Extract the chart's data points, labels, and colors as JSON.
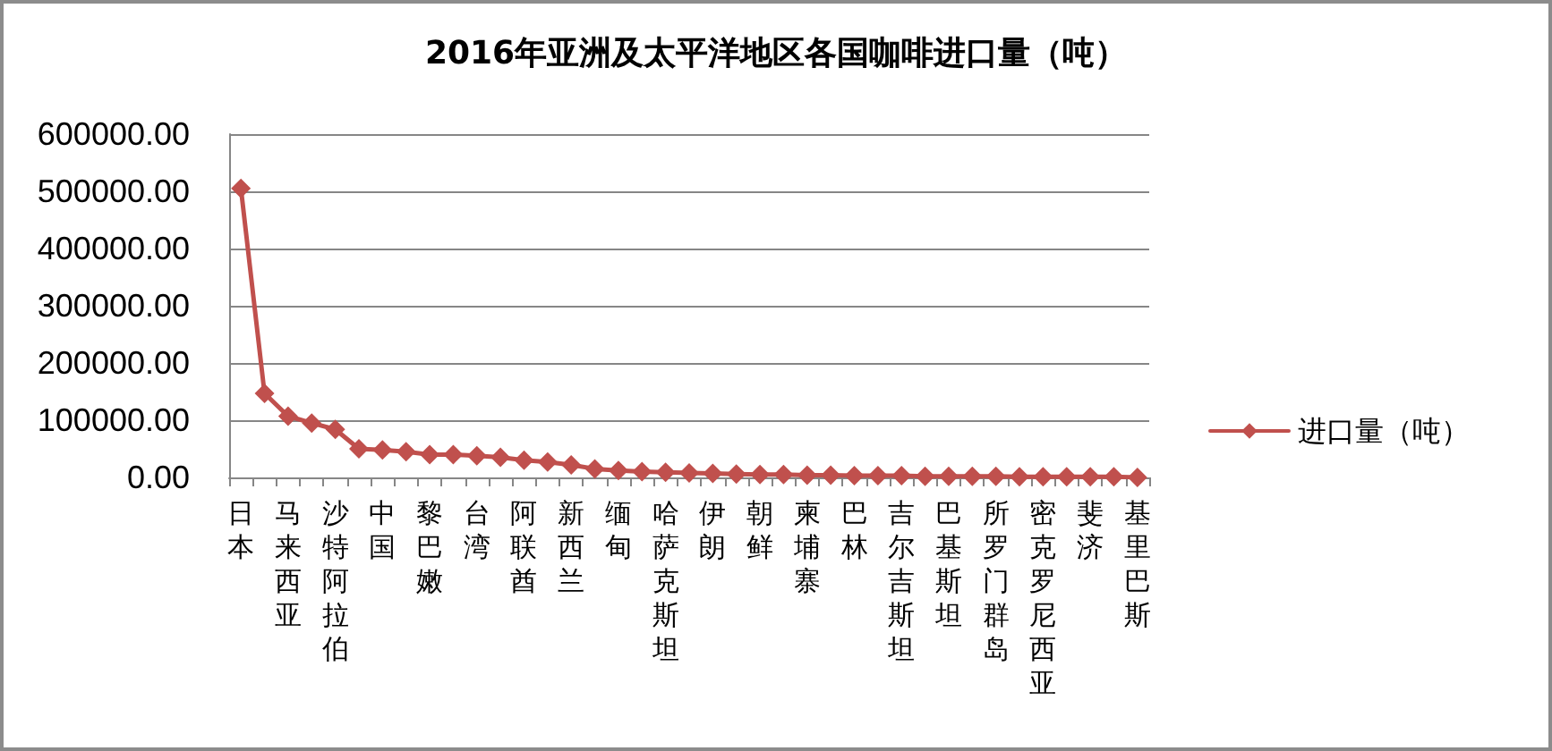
{
  "chart_data": {
    "type": "line",
    "title": "2016年亚洲及太平洋地区各国咖啡进口量（吨）",
    "categories": [
      "日本",
      null,
      "马来西亚",
      null,
      "沙特阿拉伯",
      null,
      "中国",
      null,
      "黎巴嫩",
      null,
      "台湾",
      null,
      "阿联酋",
      null,
      "新西兰",
      null,
      "缅甸",
      null,
      "哈萨克斯坦",
      null,
      "伊朗",
      null,
      "朝鲜",
      null,
      "柬埔寨",
      null,
      "巴林",
      null,
      "吉尔吉斯坦",
      null,
      "巴基斯坦",
      null,
      "所罗门群岛",
      null,
      "密克罗尼西亚",
      null,
      "斐济",
      null,
      "基里巴斯"
    ],
    "series": [
      {
        "name": "进口量（吨）",
        "color": "#c0504d",
        "values": [
          505000,
          147000,
          107000,
          95000,
          84000,
          50000,
          48000,
          45000,
          40000,
          40000,
          38000,
          35000,
          30000,
          27000,
          22000,
          15000,
          12000,
          10000,
          9000,
          8000,
          7000,
          6000,
          5000,
          5000,
          4000,
          4000,
          3000,
          3000,
          3000,
          2000,
          2000,
          2000,
          2000,
          1000,
          1000,
          1000,
          1000,
          1000,
          0
        ]
      }
    ],
    "ylim": [
      0,
      600000
    ],
    "yticks": [
      {
        "value": 0,
        "label": "0.00"
      },
      {
        "value": 100000,
        "label": "100000.00"
      },
      {
        "value": 200000,
        "label": "200000.00"
      },
      {
        "value": 300000,
        "label": "300000.00"
      },
      {
        "value": 400000,
        "label": "400000.00"
      },
      {
        "value": 500000,
        "label": "500000.00"
      },
      {
        "value": 600000,
        "label": "600000.00"
      }
    ],
    "grid": "y",
    "legend": "right",
    "marker": "diamond",
    "line_style": "solid"
  }
}
